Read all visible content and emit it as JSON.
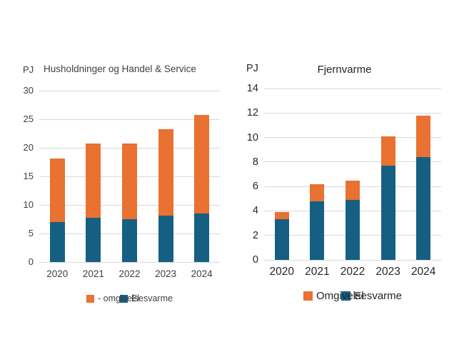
{
  "page": {
    "background": "#ffffff"
  },
  "colors": {
    "el": "#156082",
    "omgivelsesvarme": "#E97132",
    "grid": "#D9D9D9",
    "text_left_chart": "#404040",
    "text_right_chart": "#262626"
  },
  "chart_data": [
    {
      "type": "bar",
      "stacked": true,
      "title": "Husholdninger og Handel & Service",
      "unit_label": "PJ",
      "categories": [
        "2020",
        "2021",
        "2022",
        "2023",
        "2024"
      ],
      "series": [
        {
          "name": "El",
          "color": "#156082",
          "values": [
            7.0,
            7.8,
            7.5,
            8.1,
            8.5
          ]
        },
        {
          "name": "- omgivelsesvarme",
          "color": "#E97132",
          "values": [
            11.1,
            12.9,
            13.2,
            15.2,
            17.3
          ]
        }
      ],
      "totals": [
        18.1,
        20.7,
        20.7,
        23.3,
        25.8
      ],
      "ylim": [
        0,
        30
      ],
      "ytick_step": 5,
      "yticks": [
        0,
        5,
        10,
        15,
        20,
        25,
        30
      ],
      "grid": true,
      "legend_position": "bottom"
    },
    {
      "type": "bar",
      "stacked": true,
      "title": "Fjernvarme",
      "unit_label": "PJ",
      "categories": [
        "2020",
        "2021",
        "2022",
        "2023",
        "2024"
      ],
      "series": [
        {
          "name": "El",
          "color": "#156082",
          "values": [
            3.3,
            4.8,
            4.9,
            7.7,
            8.4
          ]
        },
        {
          "name": "Omgivelsesvarme",
          "color": "#E97132",
          "values": [
            0.6,
            1.4,
            1.6,
            2.4,
            3.4
          ]
        }
      ],
      "totals": [
        3.9,
        6.2,
        6.5,
        10.1,
        11.8
      ],
      "ylim": [
        0,
        14
      ],
      "ytick_step": 2,
      "yticks": [
        0,
        2,
        4,
        6,
        8,
        10,
        12,
        14
      ],
      "grid": true,
      "legend_position": "bottom"
    }
  ]
}
